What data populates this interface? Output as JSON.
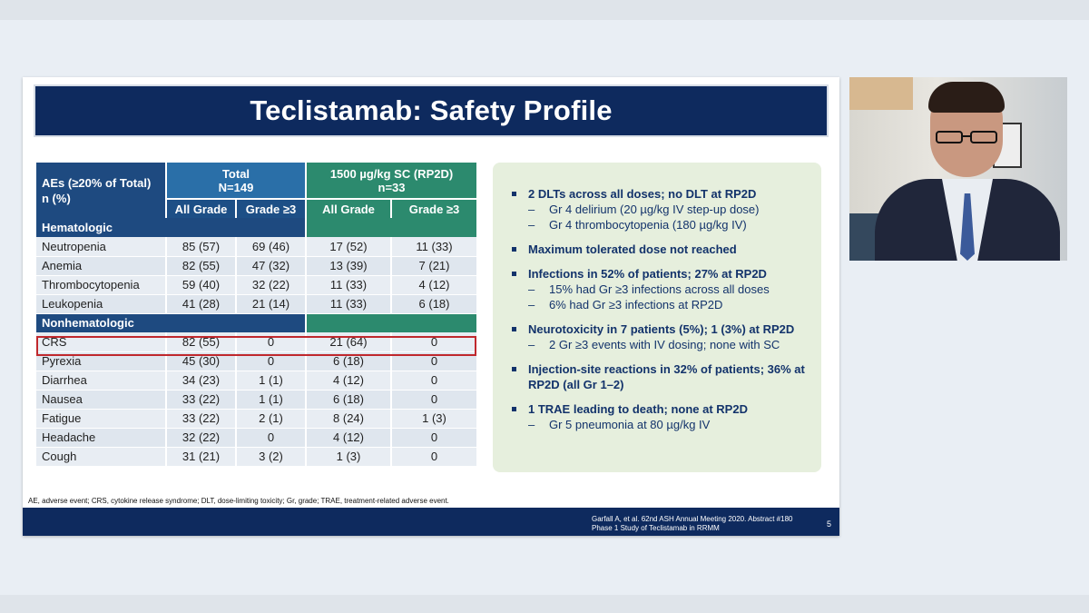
{
  "slide": {
    "title": "Teclistamab: Safety Profile",
    "table": {
      "header_main": [
        "AEs (≥20% of Total)",
        "n (%)"
      ],
      "group1": [
        "Total",
        "N=149"
      ],
      "group2": [
        "1500 µg/kg SC (RP2D)",
        "n=33"
      ],
      "sub_headers": [
        "All Grade",
        "Grade ≥3",
        "All Grade",
        "Grade ≥3"
      ],
      "cat_hematologic": "Hematologic",
      "cat_nonhematologic": "Nonhematologic",
      "hematologic_rows": [
        {
          "name": "Neutropenia",
          "v": [
            "85 (57)",
            "69 (46)",
            "17 (52)",
            "11 (33)"
          ]
        },
        {
          "name": "Anemia",
          "v": [
            "82 (55)",
            "47 (32)",
            "13 (39)",
            "7 (21)"
          ]
        },
        {
          "name": "Thrombocytopenia",
          "v": [
            "59 (40)",
            "32 (22)",
            "11 (33)",
            "4 (12)"
          ]
        },
        {
          "name": "Leukopenia",
          "v": [
            "41 (28)",
            "21 (14)",
            "11 (33)",
            "6 (18)"
          ]
        }
      ],
      "nonhematologic_rows": [
        {
          "name": "CRS",
          "v": [
            "82 (55)",
            "0",
            "21 (64)",
            "0"
          ]
        },
        {
          "name": "Pyrexia",
          "v": [
            "45 (30)",
            "0",
            "6 (18)",
            "0"
          ]
        },
        {
          "name": "Diarrhea",
          "v": [
            "34 (23)",
            "1 (1)",
            "4 (12)",
            "0"
          ]
        },
        {
          "name": "Nausea",
          "v": [
            "33 (22)",
            "1 (1)",
            "6 (18)",
            "0"
          ]
        },
        {
          "name": "Fatigue",
          "v": [
            "33 (22)",
            "2 (1)",
            "8 (24)",
            "1 (3)"
          ]
        },
        {
          "name": "Headache",
          "v": [
            "32 (22)",
            "0",
            "4 (12)",
            "0"
          ]
        },
        {
          "name": "Cough",
          "v": [
            "31 (21)",
            "3 (2)",
            "1 (3)",
            "0"
          ]
        }
      ]
    },
    "bullets": [
      {
        "text": "2 DLTs across all doses; no DLT at RP2D",
        "subs": [
          "Gr 4 delirium (20 µg/kg IV step-up dose)",
          "Gr 4 thrombocytopenia (180 µg/kg IV)"
        ]
      },
      {
        "text": "Maximum tolerated dose not reached",
        "subs": []
      },
      {
        "text": "Infections in 52% of patients; 27% at RP2D",
        "subs": [
          "15% had Gr ≥3 infections across all doses",
          "6% had Gr ≥3 infections at RP2D"
        ]
      },
      {
        "text": "Neurotoxicity in 7 patients (5%); 1 (3%) at RP2D",
        "subs": [
          "2 Gr ≥3 events with IV dosing; none with SC"
        ]
      },
      {
        "text": "Injection-site reactions in 32% of patients; 36% at RP2D (all Gr 1–2)",
        "subs": []
      },
      {
        "text": "1 TRAE leading to death; none at RP2D",
        "subs": [
          "Gr 5 pneumonia at 80 µg/kg IV"
        ]
      }
    ],
    "abbreviations": "AE, adverse event; CRS, cytokine release syndrome; DLT, dose-limiting toxicity; Gr, grade; TRAE, treatment-related adverse event.",
    "reference_line1": "Garfall A, et al. 62nd ASH Annual Meeting 2020. Abstract #180",
    "reference_line2": "Phase 1 Study of Teclistamab in RRMM",
    "page_number": "5"
  }
}
